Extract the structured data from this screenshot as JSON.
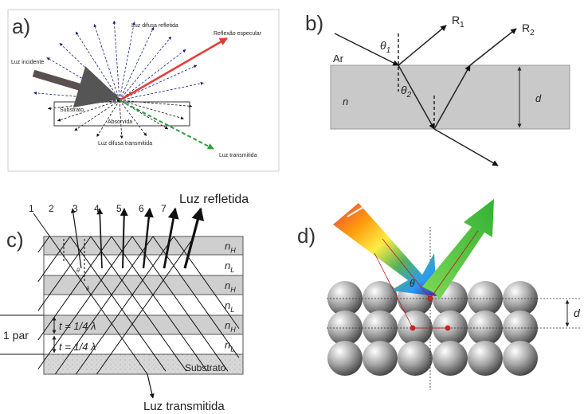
{
  "panel_a": {
    "label": "a)",
    "diffuse_reflected": "Luz difusa refletida",
    "specular": "Reflexão especular",
    "incident": "Luz incidente",
    "substrate": "Substrato",
    "absorbed": "Absorvida",
    "diffuse_transmitted": "Luz difusa transmitida",
    "transmitted": "Luz transmitida"
  },
  "panel_b": {
    "label": "b)",
    "r1": {
      "base": "R",
      "sub": "1"
    },
    "r2": {
      "base": "R",
      "sub": "2"
    },
    "theta1": {
      "base": "θ",
      "sub": "1"
    },
    "theta2": {
      "base": "θ",
      "sub": "2"
    },
    "medium": "Ar",
    "index": "n",
    "thickness": "d"
  },
  "panel_c": {
    "label": "c)",
    "ray_numbers": [
      "1",
      "2",
      "3",
      "4",
      "5",
      "6",
      "7"
    ],
    "reflected": "Luz refletida",
    "layers": [
      {
        "base": "n",
        "sub": "H"
      },
      {
        "base": "n",
        "sub": "L"
      },
      {
        "base": "n",
        "sub": "H"
      },
      {
        "base": "n",
        "sub": "L"
      },
      {
        "base": "n",
        "sub": "H"
      },
      {
        "base": "n",
        "sub": "L"
      }
    ],
    "substrate": "Substrato",
    "pair": "1 par",
    "thickness": [
      "t = 1/4 λ",
      "t = 1/4 λ"
    ],
    "angles": [
      "θ",
      "θ"
    ],
    "transmitted": "Luz transmitida"
  },
  "panel_d": {
    "label": "d)",
    "angle": "θ",
    "spacing": "d"
  }
}
